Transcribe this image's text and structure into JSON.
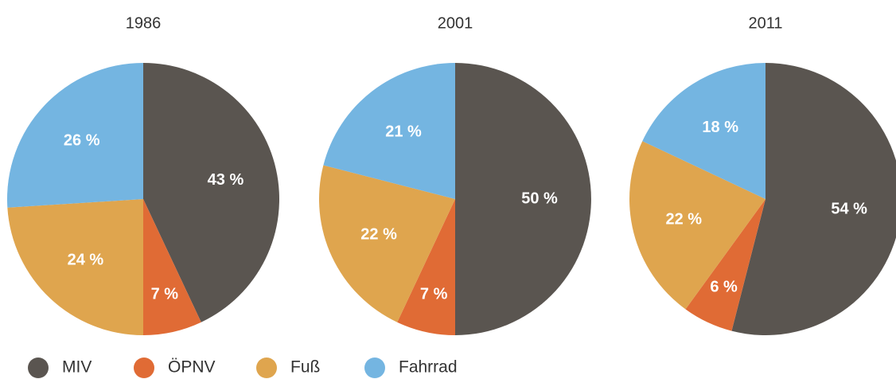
{
  "chart_data": [
    {
      "type": "pie",
      "title": "1986",
      "categories": [
        "MIV",
        "ÖPNV",
        "Fuß",
        "Fahrrad"
      ],
      "values": [
        43,
        7,
        24,
        26
      ],
      "value_labels": [
        "43 %",
        "7 %",
        "24 %",
        "26 %"
      ],
      "colors": [
        "#5a5550",
        "#e06b35",
        "#dfa54e",
        "#74b5e1"
      ]
    },
    {
      "type": "pie",
      "title": "2001",
      "categories": [
        "MIV",
        "ÖPNV",
        "Fuß",
        "Fahrrad"
      ],
      "values": [
        50,
        7,
        22,
        21
      ],
      "value_labels": [
        "50 %",
        "7 %",
        "22 %",
        "21 %"
      ],
      "colors": [
        "#5a5550",
        "#e06b35",
        "#dfa54e",
        "#74b5e1"
      ]
    },
    {
      "type": "pie",
      "title": "2011",
      "categories": [
        "MIV",
        "ÖPNV",
        "Fuß",
        "Fahrrad"
      ],
      "values": [
        54,
        6,
        22,
        18
      ],
      "value_labels": [
        "54 %",
        "6 %",
        "22 %",
        "18 %"
      ],
      "colors": [
        "#5a5550",
        "#e06b35",
        "#dfa54e",
        "#74b5e1"
      ]
    }
  ]
}
